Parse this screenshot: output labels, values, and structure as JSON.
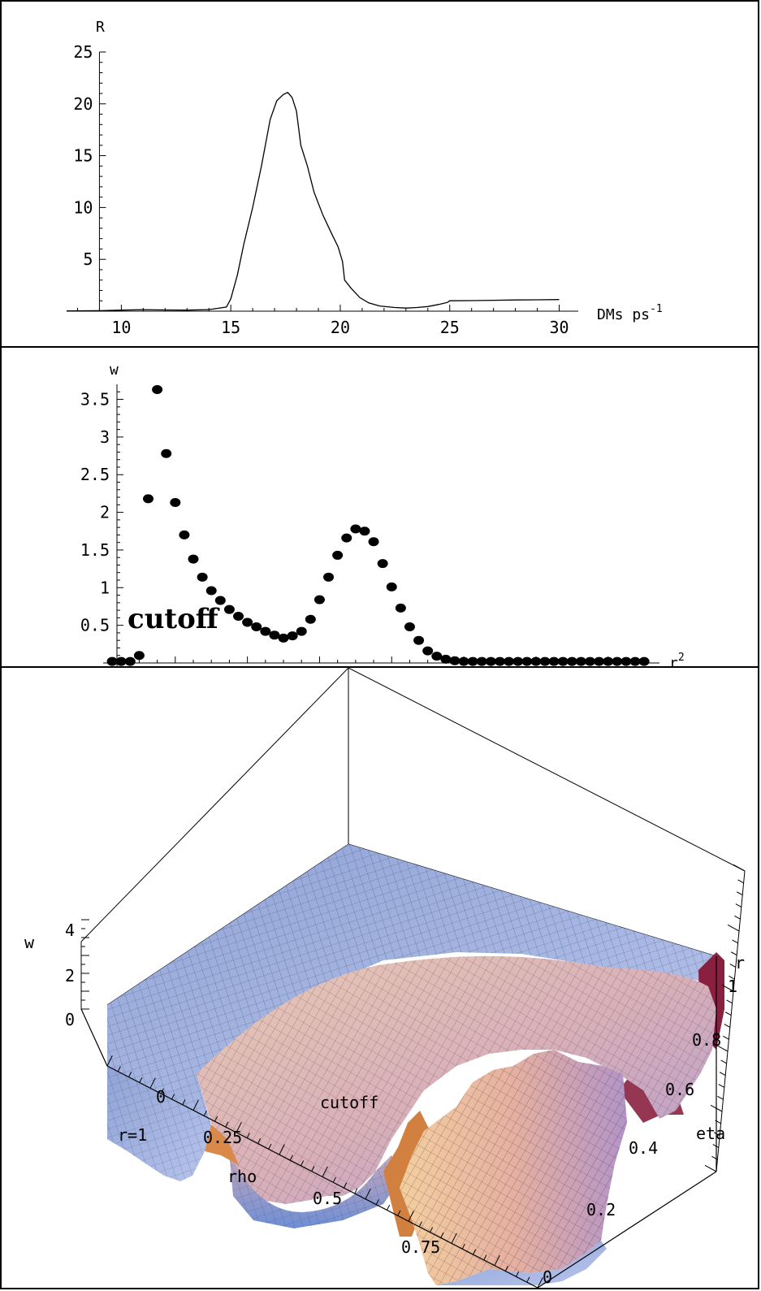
{
  "chart_data": [
    {
      "type": "line",
      "ylabel": "R",
      "xlabel": "DMs ps",
      "xlabel_sup": "-1",
      "xlim": [
        7.5,
        30.5
      ],
      "ylim": [
        0,
        25
      ],
      "xticks": [
        10,
        15,
        20,
        25,
        30
      ],
      "yticks": [
        5,
        10,
        15,
        20,
        25
      ],
      "series": [
        {
          "x": [
            7.5,
            9,
            10,
            11,
            12,
            13,
            14,
            14.8,
            15.0,
            15.3,
            15.6,
            16.0,
            16.4,
            16.8,
            17.1,
            17.4,
            17.6,
            17.8,
            18.0,
            18.2,
            18.5,
            18.8,
            19.2,
            19.6,
            19.9,
            20.1,
            20.2,
            20.5,
            20.9,
            21.3,
            21.8,
            22.5,
            23.0,
            23.5,
            24.0,
            24.5,
            24.9,
            25.0,
            26,
            27,
            28,
            29,
            30
          ],
          "y": [
            0.02,
            0.05,
            0.1,
            0.15,
            0.12,
            0.1,
            0.15,
            0.4,
            1.2,
            3.5,
            6.5,
            10.0,
            14.0,
            18.5,
            20.3,
            20.9,
            21.1,
            20.6,
            19.3,
            16.0,
            14.0,
            11.5,
            9.3,
            7.5,
            6.2,
            4.8,
            3.0,
            2.2,
            1.3,
            0.8,
            0.5,
            0.35,
            0.3,
            0.35,
            0.45,
            0.65,
            0.85,
            1.0,
            1.02,
            1.05,
            1.08,
            1.1,
            1.12
          ]
        }
      ]
    },
    {
      "type": "scatter",
      "ylabel": "w",
      "xlabel": "r",
      "xlabel_sup": "2",
      "annotation": "cutoff",
      "xlim": [
        0,
        1.52
      ],
      "ylim": [
        0,
        3.7
      ],
      "xticks": [
        0.2,
        0.4,
        0.6,
        0.8,
        1,
        1.2,
        1.4
      ],
      "yticks": [
        0.5,
        1,
        1.5,
        2,
        2.5,
        3,
        3.5
      ],
      "points": [
        [
          0.025,
          0.02
        ],
        [
          0.05,
          0.02
        ],
        [
          0.075,
          0.02
        ],
        [
          0.1,
          0.1
        ],
        [
          0.125,
          2.18
        ],
        [
          0.15,
          3.63
        ],
        [
          0.175,
          2.78
        ],
        [
          0.2,
          2.13
        ],
        [
          0.225,
          1.7
        ],
        [
          0.25,
          1.38
        ],
        [
          0.275,
          1.14
        ],
        [
          0.3,
          0.96
        ],
        [
          0.325,
          0.83
        ],
        [
          0.35,
          0.71
        ],
        [
          0.375,
          0.62
        ],
        [
          0.4,
          0.54
        ],
        [
          0.425,
          0.48
        ],
        [
          0.45,
          0.42
        ],
        [
          0.475,
          0.37
        ],
        [
          0.5,
          0.33
        ],
        [
          0.525,
          0.36
        ],
        [
          0.55,
          0.42
        ],
        [
          0.575,
          0.58
        ],
        [
          0.6,
          0.84
        ],
        [
          0.625,
          1.14
        ],
        [
          0.65,
          1.43
        ],
        [
          0.675,
          1.66
        ],
        [
          0.7,
          1.78
        ],
        [
          0.725,
          1.75
        ],
        [
          0.75,
          1.61
        ],
        [
          0.775,
          1.32
        ],
        [
          0.8,
          1.01
        ],
        [
          0.825,
          0.73
        ],
        [
          0.85,
          0.48
        ],
        [
          0.875,
          0.3
        ],
        [
          0.9,
          0.16
        ],
        [
          0.925,
          0.09
        ],
        [
          0.95,
          0.05
        ],
        [
          0.975,
          0.03
        ],
        [
          1.0,
          0.02
        ],
        [
          1.025,
          0.02
        ],
        [
          1.05,
          0.02
        ],
        [
          1.075,
          0.02
        ],
        [
          1.1,
          0.02
        ],
        [
          1.125,
          0.02
        ],
        [
          1.15,
          0.02
        ],
        [
          1.175,
          0.02
        ],
        [
          1.2,
          0.02
        ],
        [
          1.225,
          0.02
        ],
        [
          1.25,
          0.02
        ],
        [
          1.275,
          0.02
        ],
        [
          1.3,
          0.02
        ],
        [
          1.325,
          0.02
        ],
        [
          1.35,
          0.02
        ],
        [
          1.375,
          0.02
        ],
        [
          1.4,
          0.02
        ],
        [
          1.425,
          0.02
        ],
        [
          1.45,
          0.02
        ],
        [
          1.475,
          0.02
        ],
        [
          1.5,
          0.02
        ]
      ]
    },
    {
      "type": "surface3d",
      "zlabel": "w",
      "xlabel": "rho",
      "ylabel": "eta",
      "corner_label": "r",
      "edge_label": "r=1",
      "annotation": "cutoff",
      "xticks": [
        "0",
        "0.25",
        "0.5",
        "0.75"
      ],
      "yticks": [
        "0",
        "0.2",
        "0.4",
        "0.6",
        "0.8",
        "1"
      ],
      "zticks": [
        "0",
        "2",
        "4"
      ],
      "colors": {
        "flat": "#a9b9e6",
        "warm": "#e6b8a0",
        "peak": "#f0c89a",
        "shadow": "#6f8fd0",
        "crest": "#b39ac8",
        "dark": "#8a2040"
      }
    }
  ]
}
